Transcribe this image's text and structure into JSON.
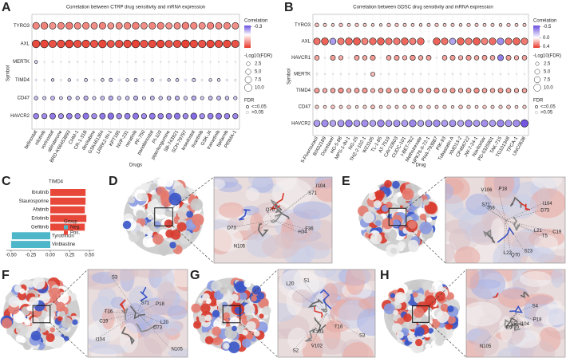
{
  "chart_data": [
    {
      "panel": "A",
      "type": "bubble",
      "title": "Correlation between CTRP drug sensitivity and mRNA expression",
      "xlabel": "Drugs",
      "ylabel": "Symbol",
      "categories": [
        "belinostat",
        "nilotinib",
        "vorinostat",
        "abiraterone",
        "BRD-K66453893",
        "CHM-1",
        "CR-1-31B",
        "decitabine",
        "GSK461364",
        "LRRK2-IN-1",
        "KPT185",
        "NVP-231",
        "neratinib",
        "PF-750",
        "panobinostat",
        "PI-103",
        "piperlongumine",
        "SB-743921",
        "SCH-79797",
        "tosedostat",
        "tivantinib",
        "GSK-J4",
        "trametinib",
        "tipifarnib",
        "PRIMA-1"
      ],
      "series": [
        {
          "name": "TYRO3",
          "values": [
            0.3,
            0.31,
            0.27,
            0.3,
            0.33,
            0.29,
            0.3,
            0.28,
            0.31,
            0.27,
            0.29,
            0.3,
            0.32,
            0.28,
            0.3,
            0.31,
            0.27,
            0.29,
            0.32,
            0.3,
            0.28,
            0.31,
            0.29,
            0.3,
            0.28
          ],
          "sizes": [
            8,
            8.5,
            7.5,
            8,
            8.5,
            7.5,
            8,
            7.5,
            8,
            7,
            7.5,
            8,
            8.5,
            7.5,
            8,
            8,
            7,
            7.5,
            8.5,
            8,
            7.5,
            8,
            7.5,
            8,
            7.5
          ]
        },
        {
          "name": "AXL",
          "values": [
            0.45,
            0.46,
            0.43,
            0.45,
            0.47,
            0.44,
            0.45,
            0.43,
            0.46,
            0.42,
            0.44,
            0.45,
            0.47,
            0.43,
            0.45,
            0.46,
            0.42,
            0.44,
            0.47,
            0.45,
            0.43,
            0.46,
            0.44,
            0.45,
            0.43
          ],
          "sizes": [
            10.5,
            11,
            10,
            10.5,
            11,
            10,
            10.5,
            10,
            11,
            9.5,
            10,
            10.5,
            11,
            10,
            10.5,
            10.5,
            9.5,
            10,
            11,
            10.5,
            10,
            10.5,
            10,
            10.5,
            10
          ]
        },
        {
          "name": "MERTK",
          "values": [
            -0.08,
            0.01,
            -0.02,
            0.0,
            -0.03,
            0.02,
            -0.01,
            0.01,
            -0.02,
            0.0,
            0.01,
            -0.01,
            -0.02,
            0.02,
            0.0,
            -0.01,
            0.01,
            0.0,
            -0.02,
            0.01,
            0.0,
            -0.01,
            0.01,
            0.0,
            -0.01
          ],
          "sizes": [
            1.6,
            0.4,
            0.6,
            0.3,
            0.7,
            0.5,
            0.4,
            0.3,
            0.6,
            0.3,
            0.4,
            0.4,
            0.6,
            0.5,
            0.3,
            0.4,
            0.4,
            0.3,
            0.6,
            0.4,
            0.3,
            0.4,
            0.4,
            0.3,
            0.4
          ]
        },
        {
          "name": "TIMD4",
          "values": [
            -0.06,
            -0.05,
            -0.08,
            -0.04,
            -0.07,
            -0.06,
            -0.09,
            -0.05,
            -0.08,
            -0.1,
            -0.06,
            -0.07,
            -0.09,
            -0.05,
            -0.08,
            -0.06,
            -0.07,
            -0.09,
            -0.06,
            -0.1,
            -0.05,
            -0.07,
            -0.08,
            -0.06,
            -0.05
          ],
          "sizes": [
            0.9,
            0.8,
            1.4,
            0.7,
            1.5,
            1.0,
            1.8,
            0.8,
            1.6,
            2.0,
            1.1,
            1.5,
            1.9,
            0.8,
            1.6,
            1.0,
            1.4,
            1.8,
            1.1,
            2.1,
            0.8,
            1.5,
            1.6,
            1.0,
            0.9
          ]
        },
        {
          "name": "CD47",
          "values": [
            -0.12,
            -0.1,
            -0.14,
            -0.09,
            -0.13,
            -0.11,
            -0.15,
            -0.1,
            -0.13,
            -0.16,
            -0.11,
            -0.12,
            -0.15,
            -0.1,
            -0.14,
            -0.12,
            -0.13,
            -0.15,
            -0.11,
            -0.16,
            -0.1,
            -0.13,
            -0.14,
            -0.12,
            -0.11
          ],
          "sizes": [
            2.4,
            2.0,
            2.8,
            1.8,
            2.7,
            2.2,
            3.2,
            2.0,
            2.8,
            3.4,
            2.3,
            2.6,
            3.1,
            2.0,
            2.9,
            2.4,
            2.7,
            3.1,
            2.3,
            3.5,
            2.0,
            2.7,
            2.9,
            2.4,
            2.2
          ]
        },
        {
          "name": "HAVCR2",
          "values": [
            -0.24,
            -0.22,
            -0.26,
            -0.21,
            -0.25,
            -0.23,
            -0.27,
            -0.22,
            -0.26,
            -0.28,
            -0.23,
            -0.25,
            -0.27,
            -0.22,
            -0.26,
            -0.24,
            -0.25,
            -0.27,
            -0.23,
            -0.29,
            -0.22,
            -0.25,
            -0.26,
            -0.24,
            -0.23
          ],
          "sizes": [
            5.2,
            4.8,
            5.8,
            4.6,
            5.6,
            5.0,
            6.2,
            4.8,
            5.8,
            6.5,
            5.0,
            5.5,
            6.1,
            4.8,
            5.9,
            5.2,
            5.6,
            6.1,
            5.0,
            6.6,
            4.8,
            5.6,
            5.9,
            5.2,
            5.0
          ]
        }
      ],
      "colors": {
        "neg": "#6b4ce0",
        "mid": "#ffffff",
        "pos": "#e8372a"
      },
      "colorbar": {
        "title": "Correlation",
        "clim": [
          -0.35,
          0.5
        ],
        "ticks": [
          -0.3
        ]
      },
      "size_legend": {
        "title": "-Log10(FDR)",
        "ticks": [
          2.5,
          {
            "value": 5,
            "label": "5.0"
          },
          7.5,
          {
            "value": 10,
            "label": "10.0"
          }
        ]
      },
      "fdr_legend": {
        "title": "FDR",
        "labels": [
          "<=0.05",
          ">0.05"
        ]
      }
    },
    {
      "panel": "B",
      "type": "bubble",
      "title": "Correlation between GDSC drug sensitivity and mRNA expression",
      "xlabel": "Drug",
      "ylabel": "Symbol",
      "categories": [
        "5-Fluorouracil",
        "BIX02189",
        "Docetaxel",
        "HG-5-88",
        "MPS-1-IN-1",
        "NG-25",
        "THZ-2-102-1",
        "WZ3105",
        "TL-1-85",
        "AT-7519",
        "CAY10603",
        "CUDC-101",
        "I-BET-762",
        "Methotrexate",
        "NPK76-II-72-1",
        "PHA-793887",
        "PIK-93",
        "Tubastatin A",
        "XMD13-2",
        "CP466722",
        "JW-7-24-1",
        "Navitoclax",
        "PD-0325901",
        "TAK-715",
        "TG101348",
        "TPCA-1",
        "UNC0638"
      ],
      "series": [
        {
          "name": "TYRO3",
          "values": [
            0.15,
            0.12,
            0.1,
            0.14,
            0.11,
            0.13,
            0.12,
            0.1,
            0.09,
            0.14,
            0.13,
            0.12,
            0.11,
            0.1,
            0.12,
            0.13,
            0.11,
            0.12,
            0.1,
            0.13,
            0.12,
            0.11,
            0.12,
            0.1,
            0.13,
            0.11,
            0.12
          ],
          "sizes": [
            2.8,
            2.2,
            1.8,
            2.6,
            2.0,
            2.4,
            2.2,
            1.8,
            1.6,
            2.6,
            2.4,
            2.2,
            2.0,
            1.8,
            2.2,
            2.4,
            2.0,
            2.2,
            1.8,
            2.4,
            2.2,
            2.0,
            2.2,
            1.8,
            2.4,
            2.0,
            2.2
          ]
        },
        {
          "name": "AXL",
          "values": [
            0.32,
            0.35,
            -0.3,
            0.3,
            0.34,
            0.36,
            0.28,
            0.33,
            0.35,
            0.31,
            0.3,
            0.34,
            0.29,
            0.33,
            -0.05,
            0.35,
            0.32,
            -0.28,
            0.34,
            0.3,
            0.36,
            0.28,
            0.33,
            -0.35,
            0.31,
            0.34,
            0.3
          ],
          "sizes": [
            9,
            10,
            8,
            9,
            10,
            10.5,
            8.5,
            9.5,
            10,
            9,
            9,
            10,
            8.5,
            9.5,
            1,
            10,
            9,
            8,
            10,
            9,
            10.5,
            8.5,
            9.5,
            9,
            9,
            10,
            9
          ]
        },
        {
          "name": "HAVCR1",
          "values": [
            0.2,
            -0.02,
            0.22,
            0.18,
            0.01,
            0.21,
            0.19,
            0.23,
            -0.01,
            0.2,
            0.22,
            0.18,
            0.24,
            0.19,
            0.21,
            0.02,
            0.2,
            0.22,
            0.18,
            0.23,
            0.19,
            0.21,
            0.2,
            -0.4,
            0.22,
            0.18,
            0.2
          ],
          "sizes": [
            4.5,
            0.6,
            5,
            4,
            0.5,
            4.8,
            4.2,
            5.2,
            0.4,
            4.5,
            5,
            4,
            5.5,
            4.2,
            4.8,
            0.5,
            4.5,
            5,
            4,
            5.2,
            4.2,
            4.8,
            4.5,
            7,
            5,
            4,
            4.5
          ]
        },
        {
          "name": "MERTK",
          "values": [
            -0.03,
            0.02,
            0.01,
            -0.02,
            0.0,
            -0.01,
            0.02,
            0.15,
            0.01,
            -0.02,
            0.0,
            0.01,
            -0.01,
            0.02,
            0.0,
            -0.01,
            0.01,
            0.02,
            -0.02,
            0.0,
            0.01,
            -0.01,
            0.0,
            0.02,
            -0.01,
            0.01,
            0.0
          ],
          "sizes": [
            0.8,
            0.4,
            0.3,
            0.6,
            0.3,
            0.4,
            0.5,
            3.5,
            0.3,
            0.6,
            0.3,
            0.4,
            0.4,
            0.5,
            0.3,
            0.4,
            0.3,
            0.5,
            0.6,
            0.3,
            0.4,
            0.4,
            0.3,
            0.5,
            0.4,
            0.3,
            0.3
          ]
        },
        {
          "name": "TIMD4",
          "values": [
            0.22,
            0.18,
            0.2,
            0.24,
            0.19,
            0.21,
            0.23,
            0.17,
            0.2,
            0.22,
            0.19,
            0.24,
            0.18,
            0.21,
            0.2,
            0.23,
            0.19,
            0.22,
            0.18,
            0.21,
            0.24,
            0.2,
            0.19,
            0.22,
            0.21,
            0.18,
            0.2
          ],
          "sizes": [
            4.8,
            3.8,
            4.3,
            5.3,
            4,
            4.6,
            5,
            3.6,
            4.3,
            4.8,
            4,
            5.3,
            3.8,
            4.6,
            4.3,
            5,
            4,
            4.8,
            3.8,
            4.6,
            5.3,
            4.3,
            4,
            4.8,
            4.6,
            3.8,
            4.3
          ]
        },
        {
          "name": "CD47",
          "values": [
            0.12,
            0.1,
            0.14,
            0.11,
            0.13,
            0.09,
            0.12,
            0.15,
            0.1,
            0.13,
            0.11,
            0.12,
            0.14,
            0.1,
            0.13,
            0.11,
            0.12,
            0.09,
            0.14,
            0.12,
            0.1,
            0.13,
            0.11,
            0.12,
            0.14,
            0.1,
            0.12
          ],
          "sizes": [
            2.4,
            2,
            2.8,
            2.2,
            2.6,
            1.8,
            2.4,
            3,
            2,
            2.6,
            2.2,
            2.4,
            2.8,
            2,
            2.6,
            2.2,
            2.4,
            1.8,
            2.8,
            2.4,
            2,
            2.6,
            2.2,
            2.4,
            2.8,
            2,
            2.4
          ]
        },
        {
          "name": "HAVCR2",
          "values": [
            -0.3,
            -0.35,
            -0.28,
            -0.32,
            -0.38,
            -0.3,
            -0.34,
            -0.29,
            -0.36,
            -0.31,
            -0.33,
            -0.3,
            -0.37,
            -0.29,
            -0.32,
            -0.35,
            -0.3,
            -0.33,
            -0.28,
            -0.36,
            -0.31,
            -0.34,
            -0.3,
            -0.37,
            -0.32,
            -0.35,
            -0.52
          ],
          "sizes": [
            8,
            9,
            7.5,
            8.5,
            9.5,
            8,
            9,
            7.5,
            9.5,
            8,
            8.5,
            8,
            9.5,
            7.5,
            8.5,
            9,
            8,
            8.5,
            7.5,
            9.5,
            8,
            9,
            8,
            9.5,
            8.5,
            9,
            11
          ]
        }
      ],
      "colors": {
        "neg": "#6b4ce0",
        "mid": "#ffffff",
        "pos": "#e8372a"
      },
      "colorbar": {
        "title": "Correlation",
        "clim": [
          -0.55,
          0.45
        ],
        "ticks": [
          -0.5,
          {
            "value": 0,
            "label": "0.0"
          },
          0.4
        ]
      },
      "size_legend": {
        "title": "-Log10(FDR)",
        "ticks": [
          2.5,
          {
            "value": 5,
            "label": "5.0"
          },
          7.5,
          {
            "value": 10,
            "label": "10.0"
          }
        ]
      },
      "fdr_legend": {
        "title": "FDR",
        "labels": [
          "<=0.05",
          ">0.05"
        ]
      }
    },
    {
      "panel": "C",
      "type": "bar",
      "orientation": "horizontal",
      "title": "TIMD4",
      "categories": [
        "Ibrutinib",
        "Staurosporine",
        "Afatinib",
        "Erlotinib",
        "Gefitinib",
        "Tyrothricin",
        "Vinblastine"
      ],
      "series": [
        {
          "name": "Neg.",
          "color": "#4db6c8",
          "values": [
            null,
            null,
            null,
            null,
            null,
            -0.49,
            -0.5
          ]
        },
        {
          "name": "Pos.",
          "color": "#e8483a",
          "values": [
            0.45,
            0.45,
            0.44,
            0.46,
            0.44,
            null,
            null
          ]
        }
      ],
      "legend_title": "Group",
      "xlim": [
        -0.56,
        0.56
      ],
      "xticks": [
        {
          "value": -0.5,
          "label": "-0.50"
        },
        {
          "value": -0.25,
          "label": "-0.25"
        },
        {
          "value": 0,
          "label": "0.00"
        },
        {
          "value": 0.25,
          "label": "0.25"
        },
        {
          "value": 0.5,
          "label": "0.50"
        }
      ]
    }
  ],
  "images": [
    {
      "panel": "D",
      "labels": [
        "D73",
        "S71",
        "Q70",
        "H34",
        "I104",
        "N105",
        "F36"
      ]
    },
    {
      "panel": "E",
      "labels": [
        "T68",
        "S71",
        "D73",
        "Q70",
        "L22",
        "S23",
        "V106",
        "I104",
        "T5",
        "P18",
        "L21",
        "C19"
      ]
    },
    {
      "panel": "F",
      "labels": [
        "L20",
        "C19",
        "I104",
        "N105",
        "D73",
        "P18",
        "T16",
        "S71",
        "S3"
      ]
    },
    {
      "panel": "G",
      "labels": [
        "K103",
        "V102",
        "S1",
        "S2",
        "S3",
        "T16",
        "L20"
      ]
    },
    {
      "panel": "H",
      "labels": [
        "E9",
        "S4",
        "S5",
        "N105",
        "I104",
        "T16",
        "P18"
      ]
    }
  ]
}
